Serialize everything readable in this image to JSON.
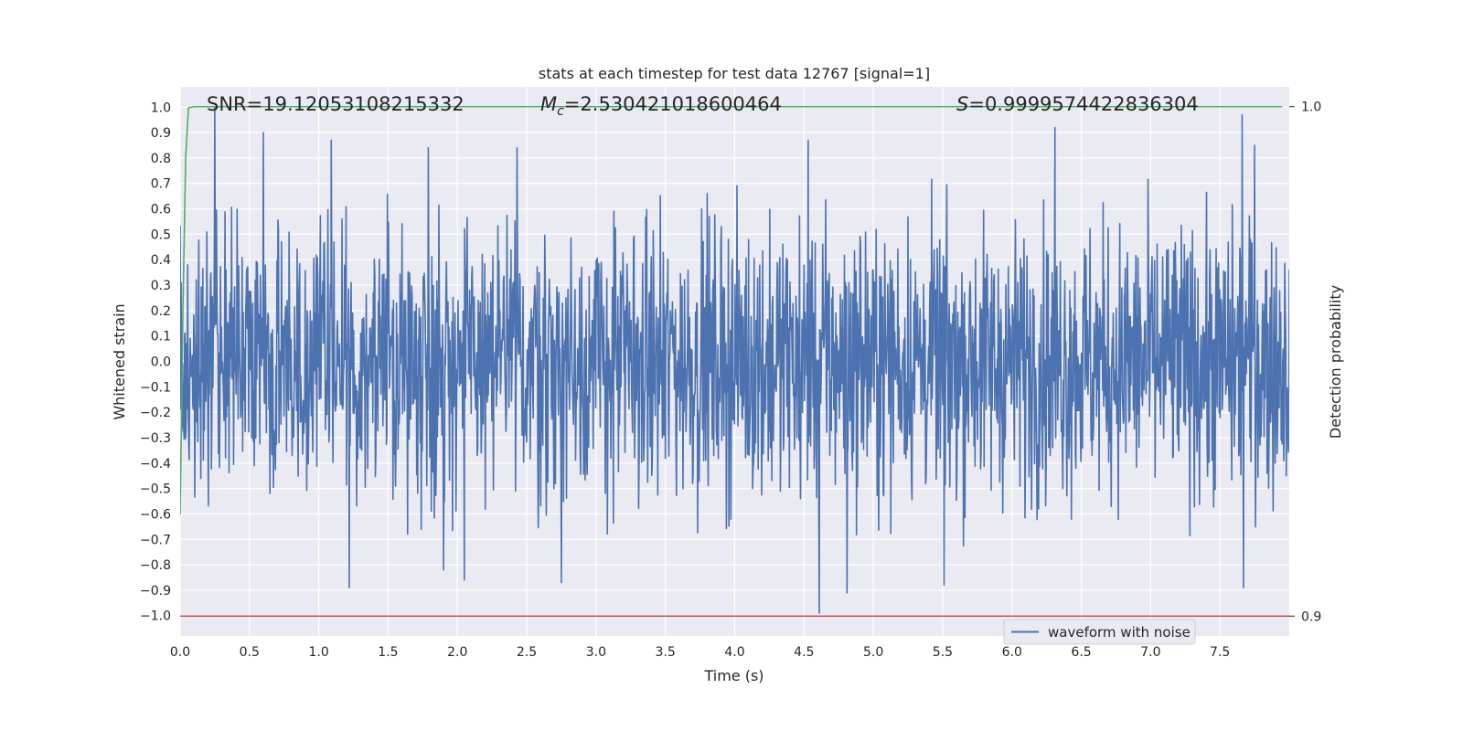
{
  "chart_data": {
    "type": "line",
    "title": "stats at each timestep for test data 12767 [signal=1]",
    "xlabel": "Time (s)",
    "ylabel": "Whitened strain",
    "y2label": "Detection probability",
    "xlim": [
      0.0,
      8.0
    ],
    "ylim": [
      -1.08,
      1.08
    ],
    "y2lim": [
      0.8961,
      1.0039
    ],
    "x_ticks": [
      "0.0",
      "0.5",
      "1.0",
      "1.5",
      "2.0",
      "2.5",
      "3.0",
      "3.5",
      "4.0",
      "4.5",
      "5.0",
      "5.5",
      "6.0",
      "6.5",
      "7.0",
      "7.5"
    ],
    "x_tick_values": [
      0.0,
      0.5,
      1.0,
      1.5,
      2.0,
      2.5,
      3.0,
      3.5,
      4.0,
      4.5,
      5.0,
      5.5,
      6.0,
      6.5,
      7.0,
      7.5
    ],
    "y_ticks": [
      "1.0",
      "0.9",
      "0.8",
      "0.7",
      "0.6",
      "0.5",
      "0.4",
      "0.3",
      "0.2",
      "0.1",
      "0.0",
      "−0.1",
      "−0.2",
      "−0.3",
      "−0.4",
      "−0.5",
      "−0.6",
      "−0.7",
      "−0.8",
      "−0.9",
      "−1.0"
    ],
    "y_tick_values": [
      1.0,
      0.9,
      0.8,
      0.7,
      0.6,
      0.5,
      0.4,
      0.3,
      0.2,
      0.1,
      0.0,
      -0.1,
      -0.2,
      -0.3,
      -0.4,
      -0.5,
      -0.6,
      -0.7,
      -0.8,
      -0.9,
      -1.0
    ],
    "y2_ticks": [
      "1.0",
      "0.9"
    ],
    "y2_tick_values": [
      1.0,
      0.9
    ],
    "grid": true,
    "legend": {
      "placement": "bottom-right",
      "entries": [
        "waveform with noise"
      ]
    },
    "annotations": {
      "snr": "SNR=19.12053108215332",
      "mc_symbol": "M",
      "mc_sub": "c",
      "mc_value": "=2.530421018600464",
      "s_symbol": "S",
      "s_value": "=0.9999574422836304"
    },
    "series": [
      {
        "name": "waveform with noise",
        "axis": "left",
        "color": "#4c72b0",
        "kind": "noise",
        "x_range": [
          0.0,
          8.0
        ],
        "typical_band": [
          -0.55,
          0.55
        ],
        "extremes": [
          [
            0.25,
            1.0
          ],
          [
            0.6,
            0.9
          ],
          [
            1.09,
            0.87
          ],
          [
            1.79,
            0.84
          ],
          [
            2.43,
            0.84
          ],
          [
            4.53,
            0.87
          ],
          [
            6.31,
            0.92
          ],
          [
            7.66,
            0.97
          ],
          [
            7.75,
            0.85
          ],
          [
            1.22,
            -0.89
          ],
          [
            1.9,
            -0.82
          ],
          [
            2.05,
            -0.86
          ],
          [
            2.75,
            -0.87
          ],
          [
            4.61,
            -0.99
          ],
          [
            4.81,
            -0.91
          ],
          [
            5.51,
            -0.88
          ],
          [
            7.67,
            -0.89
          ]
        ]
      },
      {
        "axis": "right",
        "color": "#55a868",
        "kind": "line",
        "x": [
          0.0,
          0.02,
          0.04,
          0.06,
          0.1,
          0.2,
          7.95
        ],
        "y": [
          0.92,
          0.96,
          0.99,
          0.9998,
          1.0,
          1.0,
          1.0
        ]
      },
      {
        "axis": "right",
        "color": "#c44e52",
        "kind": "hline",
        "y": 0.9
      }
    ]
  }
}
